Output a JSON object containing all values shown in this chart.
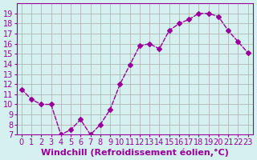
{
  "x": [
    0,
    1,
    2,
    3,
    4,
    5,
    6,
    7,
    8,
    9,
    10,
    11,
    12,
    13,
    14,
    15,
    16,
    17,
    18,
    19,
    20,
    21,
    22,
    23
  ],
  "y": [
    11.5,
    10.5,
    10.0,
    10.0,
    7.0,
    7.5,
    8.5,
    7.0,
    8.0,
    9.5,
    12.0,
    13.9,
    15.8,
    16.0,
    15.5,
    17.3,
    18.0,
    18.4,
    19.0,
    19.0,
    18.7,
    17.3,
    16.2,
    15.1
  ],
  "line_color": "#990099",
  "marker": "D",
  "marker_size": 3,
  "bg_color": "#d6f0f0",
  "grid_color": "#aaaaaa",
  "xlabel": "Windchill (Refroidissement éolien,°C)",
  "xlabel_fontsize": 8,
  "tick_fontsize": 7,
  "ylim": [
    7,
    20
  ],
  "xlim": [
    -0.5,
    23.5
  ],
  "yticks": [
    7,
    8,
    9,
    10,
    11,
    12,
    13,
    14,
    15,
    16,
    17,
    18,
    19
  ],
  "xticks": [
    0,
    1,
    2,
    3,
    4,
    5,
    6,
    7,
    8,
    9,
    10,
    11,
    12,
    13,
    14,
    15,
    16,
    17,
    18,
    19,
    20,
    21,
    22,
    23
  ]
}
